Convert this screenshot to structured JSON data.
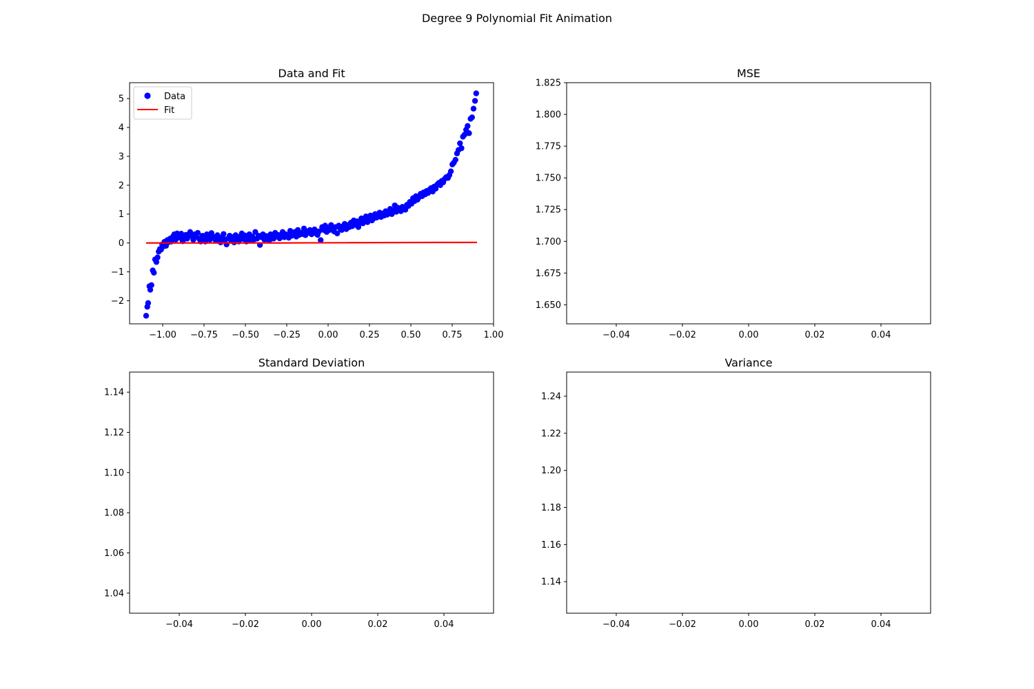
{
  "figure": {
    "title": "Degree 9 Polynomial Fit Animation"
  },
  "colors": {
    "data_points": "#0000ff",
    "fit_line": "#ff0000",
    "axes": "#000000",
    "background": "#ffffff"
  },
  "chart_data": [
    {
      "id": "data-fit",
      "type": "scatter",
      "title": "Data and Fit",
      "xlabel": "",
      "ylabel": "",
      "xlim": [
        -1.2,
        1.0
      ],
      "ylim": [
        -2.8,
        5.55
      ],
      "xticks": [
        -1.0,
        -0.75,
        -0.5,
        -0.25,
        0.0,
        0.25,
        0.5,
        0.75,
        1.0
      ],
      "xtick_labels": [
        "−1.00",
        "−0.75",
        "−0.50",
        "−0.25",
        "0.00",
        "0.25",
        "0.50",
        "0.75",
        "1.00"
      ],
      "yticks": [
        -2,
        -1,
        0,
        1,
        2,
        3,
        4,
        5
      ],
      "ytick_labels": [
        "−2",
        "−1",
        "0",
        "1",
        "2",
        "3",
        "4",
        "5"
      ],
      "grid": false,
      "legend": {
        "placement": "upper-left",
        "entries": [
          {
            "label": "Data",
            "marker": "circle",
            "color": "#0000ff"
          },
          {
            "label": "Fit",
            "marker": "line",
            "color": "#ff0000"
          }
        ]
      },
      "series": [
        {
          "name": "Data",
          "kind": "scatter",
          "color": "#0000ff",
          "points": [
            [
              -1.1,
              -2.52
            ],
            [
              -1.093,
              -2.21
            ],
            [
              -1.088,
              -2.08
            ],
            [
              -1.08,
              -1.5
            ],
            [
              -1.075,
              -1.62
            ],
            [
              -1.068,
              -1.46
            ],
            [
              -1.06,
              -0.95
            ],
            [
              -1.053,
              -1.03
            ],
            [
              -1.046,
              -0.57
            ],
            [
              -1.038,
              -0.66
            ],
            [
              -1.031,
              -0.5
            ],
            [
              -1.024,
              -0.3
            ],
            [
              -1.017,
              -0.21
            ],
            [
              -1.01,
              -0.23
            ],
            [
              -1.003,
              -0.05
            ],
            [
              -0.996,
              -0.12
            ],
            [
              -0.989,
              0.04
            ],
            [
              -0.98,
              -0.1
            ],
            [
              -0.972,
              0.1
            ],
            [
              -0.963,
              0.03
            ],
            [
              -0.955,
              0.15
            ],
            [
              -0.947,
              0.05
            ],
            [
              -0.938,
              0.22
            ],
            [
              -0.93,
              0.3
            ],
            [
              -0.921,
              0.12
            ],
            [
              -0.913,
              0.33
            ],
            [
              -0.905,
              0.25
            ],
            [
              -0.896,
              0.18
            ],
            [
              -0.888,
              0.32
            ],
            [
              -0.879,
              0.06
            ],
            [
              -0.87,
              0.22
            ],
            [
              -0.861,
              0.28
            ],
            [
              -0.852,
              0.15
            ],
            [
              -0.843,
              0.3
            ],
            [
              -0.834,
              0.38
            ],
            [
              -0.825,
              0.24
            ],
            [
              -0.815,
              0.11
            ],
            [
              -0.806,
              0.3
            ],
            [
              -0.797,
              0.22
            ],
            [
              -0.788,
              0.35
            ],
            [
              -0.779,
              0.14
            ],
            [
              -0.77,
              0.05
            ],
            [
              -0.76,
              0.25
            ],
            [
              -0.751,
              0.18
            ],
            [
              -0.742,
              0.05
            ],
            [
              -0.733,
              0.3
            ],
            [
              -0.724,
              0.2
            ],
            [
              -0.714,
              0.12
            ],
            [
              -0.705,
              0.34
            ],
            [
              -0.696,
              0.22
            ],
            [
              -0.687,
              0.15
            ],
            [
              -0.678,
              0.08
            ],
            [
              -0.669,
              0.27
            ],
            [
              -0.659,
              0.18
            ],
            [
              -0.65,
              0.02
            ],
            [
              -0.641,
              0.2
            ],
            [
              -0.632,
              0.31
            ],
            [
              -0.623,
              0.12
            ],
            [
              -0.614,
              -0.05
            ],
            [
              -0.604,
              0.16
            ],
            [
              -0.595,
              0.25
            ],
            [
              -0.586,
              0.08
            ],
            [
              -0.577,
              0.2
            ],
            [
              -0.568,
              0.02
            ],
            [
              -0.559,
              0.27
            ],
            [
              -0.549,
              0.15
            ],
            [
              -0.54,
              0.05
            ],
            [
              -0.531,
              0.22
            ],
            [
              -0.522,
              0.33
            ],
            [
              -0.513,
              0.14
            ],
            [
              -0.504,
              0.26
            ],
            [
              -0.494,
              0.05
            ],
            [
              -0.485,
              0.18
            ],
            [
              -0.476,
              0.3
            ],
            [
              -0.467,
              0.1
            ],
            [
              -0.458,
              0.22
            ],
            [
              -0.449,
              0.12
            ],
            [
              -0.44,
              0.38
            ],
            [
              -0.43,
              0.15
            ],
            [
              -0.421,
              0.25
            ],
            [
              -0.412,
              -0.07
            ],
            [
              -0.403,
              0.2
            ],
            [
              -0.394,
              0.3
            ],
            [
              -0.385,
              0.12
            ],
            [
              -0.375,
              0.24
            ],
            [
              -0.366,
              0.18
            ],
            [
              -0.357,
              0.08
            ],
            [
              -0.348,
              0.3
            ],
            [
              -0.339,
              0.21
            ],
            [
              -0.33,
              0.15
            ],
            [
              -0.32,
              0.35
            ],
            [
              -0.311,
              0.22
            ],
            [
              -0.302,
              0.28
            ],
            [
              -0.293,
              0.16
            ],
            [
              -0.284,
              0.25
            ],
            [
              -0.275,
              0.38
            ],
            [
              -0.265,
              0.2
            ],
            [
              -0.256,
              0.3
            ],
            [
              -0.247,
              0.27
            ],
            [
              -0.238,
              0.18
            ],
            [
              -0.229,
              0.42
            ],
            [
              -0.22,
              0.25
            ],
            [
              -0.21,
              0.32
            ],
            [
              -0.201,
              0.38
            ],
            [
              -0.192,
              0.22
            ],
            [
              -0.183,
              0.45
            ],
            [
              -0.174,
              0.28
            ],
            [
              -0.165,
              0.35
            ],
            [
              -0.155,
              0.31
            ],
            [
              -0.146,
              0.5
            ],
            [
              -0.137,
              0.27
            ],
            [
              -0.128,
              0.4
            ],
            [
              -0.119,
              0.35
            ],
            [
              -0.11,
              0.45
            ],
            [
              -0.1,
              0.3
            ],
            [
              -0.091,
              0.38
            ],
            [
              -0.082,
              0.47
            ],
            [
              -0.073,
              0.33
            ],
            [
              -0.064,
              0.28
            ],
            [
              -0.055,
              0.4
            ],
            [
              -0.045,
              0.1
            ],
            [
              -0.036,
              0.55
            ],
            [
              -0.027,
              0.45
            ],
            [
              -0.018,
              0.6
            ],
            [
              -0.009,
              0.38
            ],
            [
              0.0,
              0.52
            ],
            [
              0.009,
              0.45
            ],
            [
              0.018,
              0.62
            ],
            [
              0.027,
              0.48
            ],
            [
              0.036,
              0.4
            ],
            [
              0.045,
              0.55
            ],
            [
              0.055,
              0.33
            ],
            [
              0.064,
              0.6
            ],
            [
              0.073,
              0.5
            ],
            [
              0.082,
              0.45
            ],
            [
              0.091,
              0.58
            ],
            [
              0.1,
              0.66
            ],
            [
              0.11,
              0.48
            ],
            [
              0.119,
              0.62
            ],
            [
              0.128,
              0.55
            ],
            [
              0.137,
              0.7
            ],
            [
              0.146,
              0.58
            ],
            [
              0.155,
              0.78
            ],
            [
              0.165,
              0.63
            ],
            [
              0.174,
              0.75
            ],
            [
              0.183,
              0.55
            ],
            [
              0.192,
              0.7
            ],
            [
              0.201,
              0.85
            ],
            [
              0.21,
              0.68
            ],
            [
              0.22,
              0.78
            ],
            [
              0.229,
              0.92
            ],
            [
              0.238,
              0.72
            ],
            [
              0.247,
              0.88
            ],
            [
              0.256,
              0.95
            ],
            [
              0.265,
              0.78
            ],
            [
              0.275,
              0.85
            ],
            [
              0.284,
              1.0
            ],
            [
              0.293,
              0.88
            ],
            [
              0.302,
              0.95
            ],
            [
              0.311,
              1.05
            ],
            [
              0.32,
              0.9
            ],
            [
              0.33,
              1.02
            ],
            [
              0.339,
              0.95
            ],
            [
              0.348,
              1.1
            ],
            [
              0.357,
              0.98
            ],
            [
              0.366,
              1.05
            ],
            [
              0.375,
              1.18
            ],
            [
              0.385,
              1.0
            ],
            [
              0.394,
              1.12
            ],
            [
              0.403,
              1.3
            ],
            [
              0.412,
              1.08
            ],
            [
              0.421,
              1.22
            ],
            [
              0.43,
              1.15
            ],
            [
              0.44,
              1.1
            ],
            [
              0.449,
              1.25
            ],
            [
              0.458,
              1.2
            ],
            [
              0.467,
              1.15
            ],
            [
              0.476,
              1.32
            ],
            [
              0.485,
              1.28
            ],
            [
              0.494,
              1.42
            ],
            [
              0.504,
              1.36
            ],
            [
              0.513,
              1.55
            ],
            [
              0.522,
              1.45
            ],
            [
              0.531,
              1.62
            ],
            [
              0.54,
              1.5
            ],
            [
              0.549,
              1.58
            ],
            [
              0.559,
              1.7
            ],
            [
              0.568,
              1.62
            ],
            [
              0.577,
              1.75
            ],
            [
              0.586,
              1.68
            ],
            [
              0.595,
              1.8
            ],
            [
              0.604,
              1.73
            ],
            [
              0.614,
              1.85
            ],
            [
              0.623,
              1.9
            ],
            [
              0.632,
              1.78
            ],
            [
              0.641,
              1.95
            ],
            [
              0.65,
              1.88
            ],
            [
              0.659,
              2.02
            ],
            [
              0.669,
              2.08
            ],
            [
              0.678,
              2.0
            ],
            [
              0.687,
              2.15
            ],
            [
              0.696,
              2.1
            ],
            [
              0.705,
              2.22
            ],
            [
              0.714,
              2.28
            ],
            [
              0.724,
              2.25
            ],
            [
              0.733,
              2.35
            ],
            [
              0.742,
              2.48
            ],
            [
              0.751,
              2.72
            ],
            [
              0.76,
              2.78
            ],
            [
              0.77,
              2.88
            ],
            [
              0.779,
              3.1
            ],
            [
              0.788,
              3.22
            ],
            [
              0.797,
              3.45
            ],
            [
              0.806,
              3.28
            ],
            [
              0.815,
              3.68
            ],
            [
              0.825,
              3.75
            ],
            [
              0.834,
              3.92
            ],
            [
              0.843,
              4.05
            ],
            [
              0.852,
              3.8
            ],
            [
              0.861,
              4.3
            ],
            [
              0.87,
              4.35
            ],
            [
              0.879,
              4.65
            ],
            [
              0.888,
              4.92
            ],
            [
              0.895,
              5.18
            ]
          ]
        },
        {
          "name": "Fit",
          "kind": "line",
          "color": "#ff0000",
          "x": [
            -1.1,
            -0.9,
            -0.7,
            -0.5,
            -0.3,
            -0.1,
            0.1,
            0.3,
            0.5,
            0.7,
            0.9
          ],
          "y": [
            0.0,
            0.0,
            0.0,
            0.0,
            0.0,
            0.005,
            0.008,
            0.012,
            0.015,
            0.018,
            0.02
          ]
        }
      ]
    },
    {
      "id": "mse",
      "type": "line",
      "title": "MSE",
      "xlabel": "",
      "ylabel": "",
      "xlim": [
        -0.055,
        0.055
      ],
      "ylim": [
        1.635,
        1.825
      ],
      "xticks": [
        -0.04,
        -0.02,
        0.0,
        0.02,
        0.04
      ],
      "xtick_labels": [
        "−0.04",
        "−0.02",
        "0.00",
        "0.02",
        "0.04"
      ],
      "yticks": [
        1.65,
        1.675,
        1.7,
        1.725,
        1.75,
        1.775,
        1.8,
        1.825
      ],
      "ytick_labels": [
        "1.650",
        "1.675",
        "1.700",
        "1.725",
        "1.750",
        "1.775",
        "1.800",
        "1.825"
      ],
      "grid": false,
      "series": []
    },
    {
      "id": "std",
      "type": "line",
      "title": "Standard Deviation",
      "xlabel": "",
      "ylabel": "",
      "xlim": [
        -0.055,
        0.055
      ],
      "ylim": [
        1.03,
        1.15
      ],
      "xticks": [
        -0.04,
        -0.02,
        0.0,
        0.02,
        0.04
      ],
      "xtick_labels": [
        "−0.04",
        "−0.02",
        "0.00",
        "0.02",
        "0.04"
      ],
      "yticks": [
        1.04,
        1.06,
        1.08,
        1.1,
        1.12,
        1.14
      ],
      "ytick_labels": [
        "1.04",
        "1.06",
        "1.08",
        "1.10",
        "1.12",
        "1.14"
      ],
      "grid": false,
      "series": []
    },
    {
      "id": "variance",
      "type": "line",
      "title": "Variance",
      "xlabel": "",
      "ylabel": "",
      "xlim": [
        -0.055,
        0.055
      ],
      "ylim": [
        1.123,
        1.253
      ],
      "xticks": [
        -0.04,
        -0.02,
        0.0,
        0.02,
        0.04
      ],
      "xtick_labels": [
        "−0.04",
        "−0.02",
        "0.00",
        "0.02",
        "0.04"
      ],
      "yticks": [
        1.14,
        1.16,
        1.18,
        1.2,
        1.22,
        1.24
      ],
      "ytick_labels": [
        "1.14",
        "1.16",
        "1.18",
        "1.20",
        "1.22",
        "1.24"
      ],
      "grid": false,
      "series": []
    }
  ]
}
